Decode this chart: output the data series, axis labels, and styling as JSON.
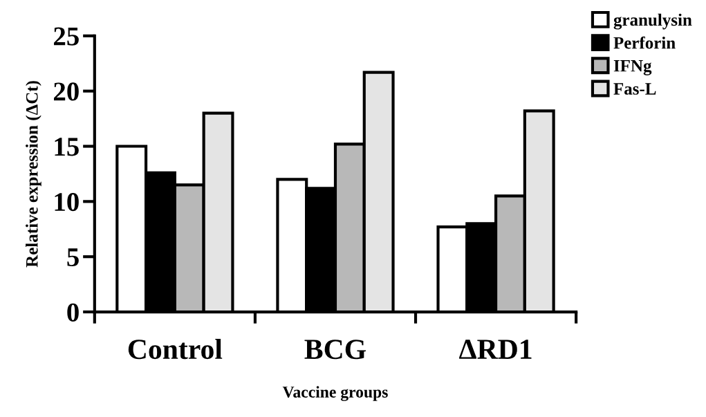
{
  "chart_data": {
    "type": "bar",
    "xlabel": "Vaccine groups",
    "ylabel": "Relative expression (ΔCt)",
    "categories": [
      "Control",
      "BCG",
      "ΔRD1"
    ],
    "series": [
      {
        "name": "granulysin",
        "color": "#ffffff",
        "values": [
          15.0,
          12.0,
          7.7
        ]
      },
      {
        "name": "Perforin",
        "color": "#000000",
        "values": [
          12.6,
          11.2,
          8.0
        ]
      },
      {
        "name": "IFNg",
        "color": "#b8b8b8",
        "values": [
          11.5,
          15.2,
          10.5
        ]
      },
      {
        "name": "Fas-L",
        "color": "#e4e4e4",
        "values": [
          18.0,
          21.7,
          18.2
        ]
      }
    ],
    "ylim": [
      0,
      25
    ],
    "yticks": [
      0,
      5,
      10,
      15,
      20,
      25
    ],
    "grid": false,
    "legend": "top right"
  }
}
